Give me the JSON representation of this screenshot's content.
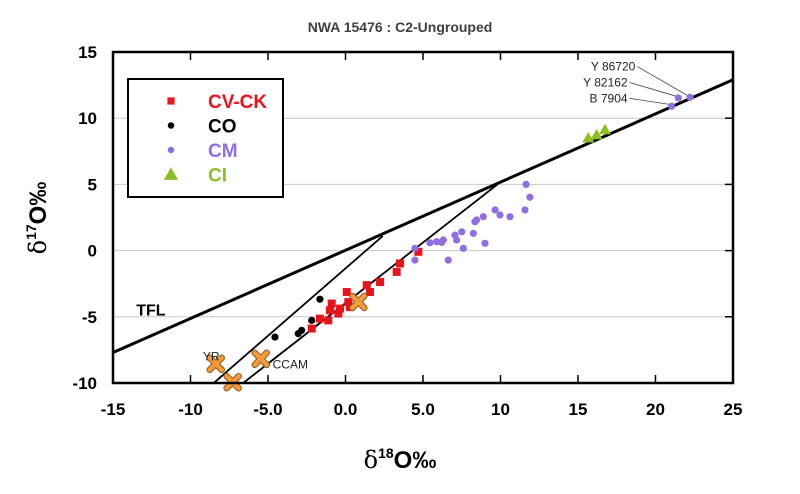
{
  "chart_data": {
    "type": "scatter",
    "title": "NWA 15476 :  C2-Ungrouped",
    "xlabel": {
      "base": "δ",
      "sup": "18",
      "rest": "O‰"
    },
    "ylabel": {
      "base": "δ",
      "sup": "17",
      "rest": "O‰"
    },
    "xlim": [
      -15,
      25
    ],
    "ylim": [
      -10,
      15
    ],
    "x_ticks": [
      -15,
      -10,
      -5,
      0,
      5,
      10,
      15,
      20,
      25
    ],
    "x_tick_labels": [
      "-15",
      "-10",
      "-5.0",
      "0.0",
      "5.0",
      "10",
      "15",
      "20",
      "25"
    ],
    "y_ticks": [
      -10,
      -5,
      0,
      5,
      10,
      15
    ],
    "y_tick_labels": [
      "-10",
      "-5",
      "0",
      "5",
      "10",
      "15"
    ],
    "grid": "horizontal",
    "legend_placement": "top-left",
    "series": [
      {
        "name": "CV-CK",
        "marker": "square",
        "color": "#e8141b",
        "points": [
          [
            -2.18,
            -5.89
          ],
          [
            -1.65,
            -5.14
          ],
          [
            -1.11,
            -5.27
          ],
          [
            -1.0,
            -4.51
          ],
          [
            -0.89,
            -4.0
          ],
          [
            -0.46,
            -4.76
          ],
          [
            -0.35,
            -4.38
          ],
          [
            0.08,
            -3.13
          ],
          [
            0.18,
            -3.89
          ],
          [
            0.29,
            -4.27
          ],
          [
            1.37,
            -2.61
          ],
          [
            1.58,
            -3.13
          ],
          [
            2.23,
            -2.37
          ],
          [
            3.3,
            -1.61
          ],
          [
            3.52,
            -0.97
          ],
          [
            4.7,
            -0.09
          ]
        ]
      },
      {
        "name": "CO",
        "marker": "circle",
        "color": "#000000",
        "points": [
          [
            -4.55,
            -6.53
          ],
          [
            -3.05,
            -6.27
          ],
          [
            -2.83,
            -6.02
          ],
          [
            -2.18,
            -5.27
          ],
          [
            -1.65,
            -3.67
          ]
        ]
      },
      {
        "name": "CM",
        "marker": "circle",
        "color": "#8f6fe0",
        "points": [
          [
            4.48,
            0.17
          ],
          [
            4.48,
            -0.72
          ],
          [
            5.45,
            0.59
          ],
          [
            5.88,
            0.67
          ],
          [
            6.2,
            0.62
          ],
          [
            6.31,
            0.8
          ],
          [
            6.63,
            -0.72
          ],
          [
            7.06,
            1.17
          ],
          [
            7.17,
            0.8
          ],
          [
            7.5,
            1.42
          ],
          [
            7.6,
            0.17
          ],
          [
            8.25,
            1.3
          ],
          [
            8.35,
            2.18
          ],
          [
            8.46,
            2.31
          ],
          [
            8.89,
            2.56
          ],
          [
            9.0,
            0.55
          ],
          [
            9.65,
            3.07
          ],
          [
            9.97,
            2.69
          ],
          [
            10.61,
            2.56
          ],
          [
            11.58,
            3.07
          ],
          [
            11.65,
            5.0
          ],
          [
            11.9,
            4.03
          ],
          [
            21.04,
            10.9
          ],
          [
            21.47,
            11.53
          ],
          [
            22.23,
            11.58
          ]
        ]
      },
      {
        "name": "CI",
        "marker": "triangle",
        "color": "#8cbf26",
        "points": [
          [
            15.66,
            8.5
          ],
          [
            16.2,
            8.75
          ],
          [
            16.74,
            9.13
          ]
        ]
      },
      {
        "marker": "cross",
        "color": "#f59a3c",
        "points": [
          [
            -8.37,
            -8.55
          ],
          [
            -7.28,
            -9.94
          ],
          [
            -5.47,
            -8.17
          ],
          [
            0.83,
            -3.88
          ]
        ]
      }
    ],
    "lines": [
      {
        "label": "TFL",
        "from": [
          -15,
          -7.7
        ],
        "to": [
          25,
          12.9
        ],
        "width": "thick"
      },
      {
        "from": [
          -8.5,
          -10
        ],
        "to": [
          2.4,
          1.1
        ],
        "width": "thin"
      },
      {
        "from": [
          -6.6,
          -10
        ],
        "to": [
          9.8,
          5.0
        ],
        "width": "thin"
      }
    ],
    "annotations": [
      {
        "text": "TFL",
        "at": [
          -13.5,
          -4.9
        ]
      },
      {
        "text": "YR",
        "at": [
          -9.2,
          -8.3
        ]
      },
      {
        "text": "CCAM",
        "at": [
          -4.7,
          -8.9
        ]
      },
      {
        "text": "Y 86720",
        "at": [
          18.7,
          13.6
        ],
        "points_to": [
          22.23,
          11.58
        ]
      },
      {
        "text": "Y 82162",
        "at": [
          18.2,
          12.4
        ],
        "points_to": [
          21.47,
          11.53
        ]
      },
      {
        "text": "B 7904",
        "at": [
          18.2,
          11.2
        ],
        "points_to": [
          21.04,
          10.9
        ]
      }
    ]
  }
}
